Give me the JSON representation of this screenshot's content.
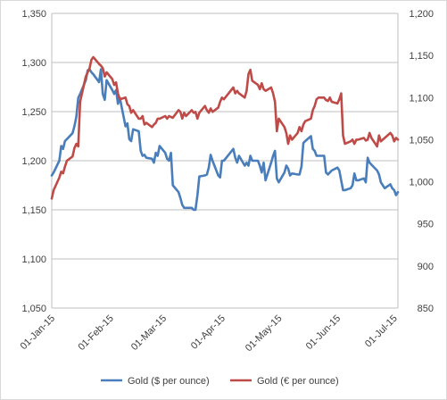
{
  "chart_data": {
    "type": "line",
    "title": "",
    "xlabel": "",
    "ylabel": "",
    "y2label": "",
    "grid": true,
    "legend": "bottom",
    "x_tick_labels": [
      "01-Jan-15",
      "01-Feb-15",
      "01-Mar-15",
      "01-Apr-15",
      "01-May-15",
      "01-Jun-15",
      "01-Jul-15"
    ],
    "ylim": [
      1050,
      1350
    ],
    "y_ticks": [
      1050,
      1100,
      1150,
      1200,
      1250,
      1300,
      1350
    ],
    "y_tick_labels": [
      "1,050",
      "1,100",
      "1,150",
      "1,200",
      "1,250",
      "1,300",
      "1,350"
    ],
    "y2lim": [
      850,
      1200
    ],
    "y2_ticks": [
      850,
      900,
      950,
      1000,
      1050,
      1100,
      1150,
      1200
    ],
    "y2_tick_labels": [
      "850",
      "900",
      "950",
      "1,000",
      "1,050",
      "1,100",
      "1,150",
      "1,200"
    ],
    "series": [
      {
        "name": "Gold ($ per ounce)",
        "axis": "left",
        "color": "#4a7ebb",
        "points": [
          [
            "2015-01-01",
            1185
          ],
          [
            "2015-01-02",
            1188
          ],
          [
            "2015-01-05",
            1200
          ],
          [
            "2015-01-06",
            1215
          ],
          [
            "2015-01-07",
            1212
          ],
          [
            "2015-01-08",
            1220
          ],
          [
            "2015-01-09",
            1222
          ],
          [
            "2015-01-12",
            1228
          ],
          [
            "2015-01-13",
            1235
          ],
          [
            "2015-01-14",
            1245
          ],
          [
            "2015-01-15",
            1264
          ],
          [
            "2015-01-16",
            1268
          ],
          [
            "2015-01-19",
            1282
          ],
          [
            "2015-01-20",
            1292
          ],
          [
            "2015-01-21",
            1293
          ],
          [
            "2015-01-22",
            1290
          ],
          [
            "2015-01-23",
            1288
          ],
          [
            "2015-01-26",
            1280
          ],
          [
            "2015-01-27",
            1293
          ],
          [
            "2015-01-28",
            1268
          ],
          [
            "2015-01-29",
            1262
          ],
          [
            "2015-01-30",
            1282
          ],
          [
            "2015-02-02",
            1272
          ],
          [
            "2015-02-03",
            1268
          ],
          [
            "2015-02-04",
            1272
          ],
          [
            "2015-02-05",
            1258
          ],
          [
            "2015-02-06",
            1264
          ],
          [
            "2015-02-09",
            1235
          ],
          [
            "2015-02-10",
            1238
          ],
          [
            "2015-02-11",
            1222
          ],
          [
            "2015-02-12",
            1220
          ],
          [
            "2015-02-13",
            1232
          ],
          [
            "2015-02-16",
            1230
          ],
          [
            "2015-02-17",
            1210
          ],
          [
            "2015-02-18",
            1205
          ],
          [
            "2015-02-19",
            1206
          ],
          [
            "2015-02-20",
            1203
          ],
          [
            "2015-02-23",
            1202
          ],
          [
            "2015-02-24",
            1198
          ],
          [
            "2015-02-25",
            1208
          ],
          [
            "2015-02-26",
            1205
          ],
          [
            "2015-02-27",
            1215
          ],
          [
            "2015-03-02",
            1208
          ],
          [
            "2015-03-03",
            1202
          ],
          [
            "2015-03-04",
            1200
          ],
          [
            "2015-03-05",
            1208
          ],
          [
            "2015-03-06",
            1175
          ],
          [
            "2015-03-09",
            1168
          ],
          [
            "2015-03-10",
            1162
          ],
          [
            "2015-03-11",
            1155
          ],
          [
            "2015-03-12",
            1152
          ],
          [
            "2015-03-13",
            1152
          ],
          [
            "2015-03-16",
            1152
          ],
          [
            "2015-03-17",
            1150
          ],
          [
            "2015-03-18",
            1150
          ],
          [
            "2015-03-19",
            1165
          ],
          [
            "2015-03-20",
            1184
          ],
          [
            "2015-03-23",
            1185
          ],
          [
            "2015-03-24",
            1186
          ],
          [
            "2015-03-25",
            1193
          ],
          [
            "2015-03-26",
            1206
          ],
          [
            "2015-03-27",
            1200
          ],
          [
            "2015-03-30",
            1185
          ],
          [
            "2015-03-31",
            1183
          ],
          [
            "2015-04-01",
            1200
          ],
          [
            "2015-04-02",
            1200
          ],
          [
            "2015-04-07",
            1212
          ],
          [
            "2015-04-08",
            1203
          ],
          [
            "2015-04-09",
            1198
          ],
          [
            "2015-04-10",
            1205
          ],
          [
            "2015-04-13",
            1195
          ],
          [
            "2015-04-14",
            1198
          ],
          [
            "2015-04-15",
            1195
          ],
          [
            "2015-04-16",
            1205
          ],
          [
            "2015-04-17",
            1200
          ],
          [
            "2015-04-20",
            1200
          ],
          [
            "2015-04-21",
            1195
          ],
          [
            "2015-04-22",
            1188
          ],
          [
            "2015-04-23",
            1198
          ],
          [
            "2015-04-24",
            1180
          ],
          [
            "2015-04-27",
            1198
          ],
          [
            "2015-04-28",
            1205
          ],
          [
            "2015-04-29",
            1210
          ],
          [
            "2015-04-30",
            1182
          ],
          [
            "2015-05-01",
            1178
          ],
          [
            "2015-05-04",
            1188
          ],
          [
            "2015-05-05",
            1195
          ],
          [
            "2015-05-06",
            1192
          ],
          [
            "2015-05-07",
            1185
          ],
          [
            "2015-05-08",
            1187
          ],
          [
            "2015-05-11",
            1186
          ],
          [
            "2015-05-12",
            1186
          ],
          [
            "2015-05-13",
            1194
          ],
          [
            "2015-05-14",
            1218
          ],
          [
            "2015-05-15",
            1220
          ],
          [
            "2015-05-18",
            1225
          ],
          [
            "2015-05-19",
            1212
          ],
          [
            "2015-05-20",
            1210
          ],
          [
            "2015-05-21",
            1205
          ],
          [
            "2015-05-22",
            1205
          ],
          [
            "2015-05-25",
            1205
          ],
          [
            "2015-05-26",
            1188
          ],
          [
            "2015-05-27",
            1186
          ],
          [
            "2015-05-28",
            1188
          ],
          [
            "2015-05-29",
            1190
          ],
          [
            "2015-06-01",
            1193
          ],
          [
            "2015-06-02",
            1190
          ],
          [
            "2015-06-03",
            1180
          ],
          [
            "2015-06-04",
            1170
          ],
          [
            "2015-06-05",
            1170
          ],
          [
            "2015-06-08",
            1172
          ],
          [
            "2015-06-09",
            1175
          ],
          [
            "2015-06-10",
            1187
          ],
          [
            "2015-06-11",
            1180
          ],
          [
            "2015-06-12",
            1180
          ],
          [
            "2015-06-15",
            1182
          ],
          [
            "2015-06-16",
            1178
          ],
          [
            "2015-06-17",
            1203
          ],
          [
            "2015-06-18",
            1198
          ],
          [
            "2015-06-19",
            1196
          ],
          [
            "2015-06-22",
            1190
          ],
          [
            "2015-06-23",
            1186
          ],
          [
            "2015-06-24",
            1178
          ],
          [
            "2015-06-25",
            1175
          ],
          [
            "2015-06-26",
            1172
          ],
          [
            "2015-06-29",
            1176
          ],
          [
            "2015-06-30",
            1172
          ],
          [
            "2015-07-01",
            1170
          ],
          [
            "2015-07-02",
            1165
          ],
          [
            "2015-07-03",
            1168
          ]
        ]
      },
      {
        "name": "Gold (€ per ounce)",
        "axis": "right",
        "color": "#be4b48",
        "points": [
          [
            "2015-01-01",
            980
          ],
          [
            "2015-01-02",
            990
          ],
          [
            "2015-01-05",
            1005
          ],
          [
            "2015-01-06",
            1012
          ],
          [
            "2015-01-07",
            1010
          ],
          [
            "2015-01-08",
            1018
          ],
          [
            "2015-01-09",
            1025
          ],
          [
            "2015-01-12",
            1030
          ],
          [
            "2015-01-13",
            1040
          ],
          [
            "2015-01-14",
            1045
          ],
          [
            "2015-01-15",
            1042
          ],
          [
            "2015-01-16",
            1095
          ],
          [
            "2015-01-19",
            1125
          ],
          [
            "2015-01-20",
            1130
          ],
          [
            "2015-01-21",
            1135
          ],
          [
            "2015-01-22",
            1145
          ],
          [
            "2015-01-23",
            1148
          ],
          [
            "2015-01-26",
            1140
          ],
          [
            "2015-01-27",
            1138
          ],
          [
            "2015-01-28",
            1135
          ],
          [
            "2015-01-29",
            1125
          ],
          [
            "2015-01-30",
            1130
          ],
          [
            "2015-02-02",
            1122
          ],
          [
            "2015-02-03",
            1115
          ],
          [
            "2015-02-04",
            1118
          ],
          [
            "2015-02-05",
            1105
          ],
          [
            "2015-02-06",
            1098
          ],
          [
            "2015-02-09",
            1100
          ],
          [
            "2015-02-10",
            1092
          ],
          [
            "2015-02-11",
            1090
          ],
          [
            "2015-02-12",
            1082
          ],
          [
            "2015-02-13",
            1085
          ],
          [
            "2015-02-16",
            1075
          ],
          [
            "2015-02-17",
            1075
          ],
          [
            "2015-02-18",
            1078
          ],
          [
            "2015-02-19",
            1068
          ],
          [
            "2015-02-20",
            1070
          ],
          [
            "2015-02-23",
            1065
          ],
          [
            "2015-02-24",
            1068
          ],
          [
            "2015-02-25",
            1070
          ],
          [
            "2015-02-26",
            1075
          ],
          [
            "2015-02-27",
            1075
          ],
          [
            "2015-03-02",
            1078
          ],
          [
            "2015-03-03",
            1075
          ],
          [
            "2015-03-04",
            1078
          ],
          [
            "2015-03-05",
            1077
          ],
          [
            "2015-03-06",
            1076
          ],
          [
            "2015-03-09",
            1085
          ],
          [
            "2015-03-10",
            1083
          ],
          [
            "2015-03-11",
            1075
          ],
          [
            "2015-03-12",
            1082
          ],
          [
            "2015-03-13",
            1078
          ],
          [
            "2015-03-16",
            1085
          ],
          [
            "2015-03-17",
            1082
          ],
          [
            "2015-03-18",
            1083
          ],
          [
            "2015-03-19",
            1075
          ],
          [
            "2015-03-20",
            1082
          ],
          [
            "2015-03-23",
            1090
          ],
          [
            "2015-03-24",
            1085
          ],
          [
            "2015-03-25",
            1082
          ],
          [
            "2015-03-26",
            1087
          ],
          [
            "2015-03-27",
            1083
          ],
          [
            "2015-03-30",
            1088
          ],
          [
            "2015-03-31",
            1095
          ],
          [
            "2015-04-01",
            1100
          ],
          [
            "2015-04-02",
            1098
          ],
          [
            "2015-04-07",
            1112
          ],
          [
            "2015-04-08",
            1105
          ],
          [
            "2015-04-09",
            1108
          ],
          [
            "2015-04-10",
            1105
          ],
          [
            "2015-04-13",
            1100
          ],
          [
            "2015-04-14",
            1108
          ],
          [
            "2015-04-15",
            1128
          ],
          [
            "2015-04-16",
            1133
          ],
          [
            "2015-04-17",
            1120
          ],
          [
            "2015-04-20",
            1115
          ],
          [
            "2015-04-21",
            1110
          ],
          [
            "2015-04-22",
            1117
          ],
          [
            "2015-04-23",
            1110
          ],
          [
            "2015-04-24",
            1108
          ],
          [
            "2015-04-27",
            1112
          ],
          [
            "2015-04-28",
            1105
          ],
          [
            "2015-04-29",
            1095
          ],
          [
            "2015-04-30",
            1060
          ],
          [
            "2015-05-01",
            1075
          ],
          [
            "2015-05-04",
            1065
          ],
          [
            "2015-05-05",
            1058
          ],
          [
            "2015-05-06",
            1045
          ],
          [
            "2015-05-07",
            1055
          ],
          [
            "2015-05-08",
            1050
          ],
          [
            "2015-05-11",
            1058
          ],
          [
            "2015-05-12",
            1065
          ],
          [
            "2015-05-13",
            1060
          ],
          [
            "2015-05-14",
            1068
          ],
          [
            "2015-05-15",
            1072
          ],
          [
            "2015-05-18",
            1075
          ],
          [
            "2015-05-19",
            1085
          ],
          [
            "2015-05-20",
            1090
          ],
          [
            "2015-05-21",
            1098
          ],
          [
            "2015-05-22",
            1100
          ],
          [
            "2015-05-25",
            1100
          ],
          [
            "2015-05-26",
            1097
          ],
          [
            "2015-05-27",
            1096
          ],
          [
            "2015-05-28",
            1100
          ],
          [
            "2015-05-29",
            1095
          ],
          [
            "2015-06-01",
            1093
          ],
          [
            "2015-06-02",
            1098
          ],
          [
            "2015-06-03",
            1105
          ],
          [
            "2015-06-04",
            1055
          ],
          [
            "2015-06-05",
            1045
          ],
          [
            "2015-06-08",
            1048
          ],
          [
            "2015-06-09",
            1050
          ],
          [
            "2015-06-10",
            1045
          ],
          [
            "2015-06-11",
            1050
          ],
          [
            "2015-06-12",
            1050
          ],
          [
            "2015-06-15",
            1052
          ],
          [
            "2015-06-16",
            1049
          ],
          [
            "2015-06-17",
            1050
          ],
          [
            "2015-06-18",
            1058
          ],
          [
            "2015-06-19",
            1052
          ],
          [
            "2015-06-22",
            1042
          ],
          [
            "2015-06-23",
            1055
          ],
          [
            "2015-06-24",
            1048
          ],
          [
            "2015-06-25",
            1050
          ],
          [
            "2015-06-26",
            1052
          ],
          [
            "2015-06-29",
            1058
          ],
          [
            "2015-06-30",
            1055
          ],
          [
            "2015-07-01",
            1048
          ],
          [
            "2015-07-02",
            1052
          ],
          [
            "2015-07-03",
            1050
          ]
        ]
      }
    ]
  }
}
